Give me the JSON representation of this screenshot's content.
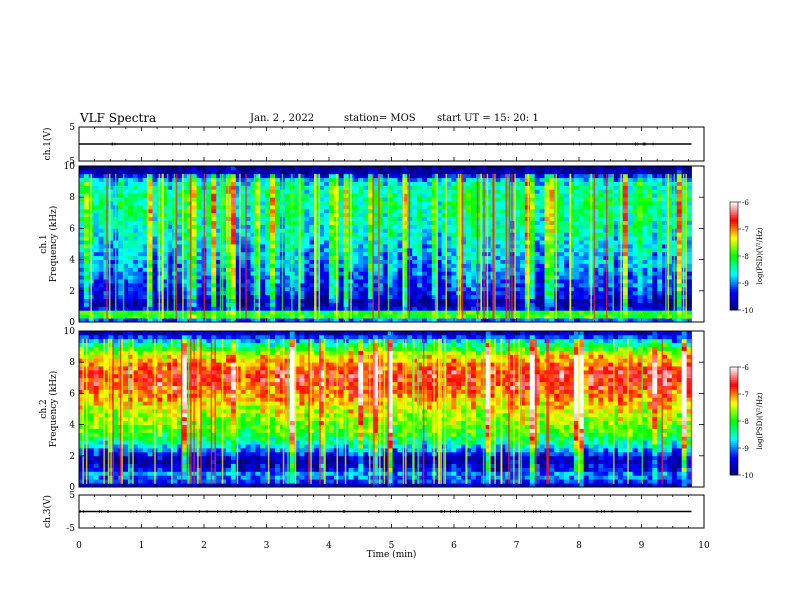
{
  "header": {
    "title": "VLF Spectra",
    "date": "Jan. 2 , 2022",
    "station": "station= MOS",
    "start": "start UT = 15: 20: 1"
  },
  "chart_data": [
    {
      "type": "line",
      "panel": "ch1-waveform",
      "ylabel": "ch.1(V)",
      "ylim": [
        -5,
        5
      ],
      "yticks": [
        "5",
        "-5"
      ],
      "xlim": [
        0,
        10
      ],
      "series": [
        {
          "x": [
            0,
            9.8
          ],
          "values": [
            0,
            0
          ]
        }
      ]
    },
    {
      "type": "heatmap",
      "panel": "ch1-spectrogram",
      "ylabel": "ch.1 Frequency (kHz)",
      "ylim": [
        0,
        10
      ],
      "yticks": [
        "0",
        "2",
        "4",
        "6",
        "8",
        "10"
      ],
      "xlim": [
        0,
        10
      ],
      "data_end_min": 9.8,
      "colorbar": {
        "label": "log(PSD)(V²/Hz)",
        "range": [
          -10,
          -6
        ],
        "ticks": [
          "-6",
          "-7",
          "-8",
          "-9",
          "-10"
        ]
      },
      "frequency_profile_log_psd": [
        [
          0.0,
          -9.9
        ],
        [
          0.3,
          -8.0
        ],
        [
          0.6,
          -7.9
        ],
        [
          0.9,
          -9.6
        ],
        [
          1.3,
          -9.9
        ],
        [
          1.7,
          -9.4
        ],
        [
          2.1,
          -9.3
        ],
        [
          2.6,
          -9.2
        ],
        [
          3.2,
          -9.0
        ],
        [
          4.5,
          -8.8
        ],
        [
          6.0,
          -8.5
        ],
        [
          8.0,
          -8.3
        ],
        [
          9.0,
          -8.6
        ],
        [
          9.6,
          -9.9
        ],
        [
          10.0,
          -10.0
        ]
      ]
    },
    {
      "type": "heatmap",
      "panel": "ch2-spectrogram",
      "ylabel": "ch.2 Frequency (kHz)",
      "ylim": [
        0,
        10
      ],
      "yticks": [
        "0",
        "2",
        "4",
        "6",
        "8",
        "10"
      ],
      "xlim": [
        0,
        10
      ],
      "data_end_min": 9.8,
      "colorbar": {
        "label": "log(PSD)(V²/Hz)",
        "range": [
          -10,
          -6
        ],
        "ticks": [
          "-6",
          "-7",
          "-8",
          "-9",
          "-10"
        ]
      },
      "frequency_profile_log_psd": [
        [
          0.0,
          -9.9
        ],
        [
          0.4,
          -9.2
        ],
        [
          0.8,
          -8.9
        ],
        [
          1.2,
          -9.5
        ],
        [
          1.8,
          -9.8
        ],
        [
          2.5,
          -8.8
        ],
        [
          3.5,
          -7.9
        ],
        [
          4.5,
          -7.6
        ],
        [
          5.5,
          -7.2
        ],
        [
          6.5,
          -6.7
        ],
        [
          7.3,
          -6.6
        ],
        [
          8.5,
          -7.4
        ],
        [
          9.3,
          -8.6
        ],
        [
          10.0,
          -9.9
        ]
      ]
    },
    {
      "type": "line",
      "panel": "ch3-waveform",
      "ylabel": "ch.3(V)",
      "ylim": [
        -5,
        5
      ],
      "yticks": [
        "5",
        "-5"
      ],
      "xlim": [
        0,
        10
      ],
      "xlabel": "Time (min)",
      "xticks": [
        "0",
        "1",
        "2",
        "3",
        "4",
        "5",
        "6",
        "7",
        "8",
        "9",
        "10"
      ],
      "series": [
        {
          "x": [
            0,
            9.8
          ],
          "values": [
            0,
            0
          ]
        }
      ]
    }
  ],
  "colors": {
    "colormap": [
      "#000080",
      "#0000ff",
      "#00ffff",
      "#00ff00",
      "#ffff00",
      "#ff0000",
      "#ffffff"
    ]
  }
}
